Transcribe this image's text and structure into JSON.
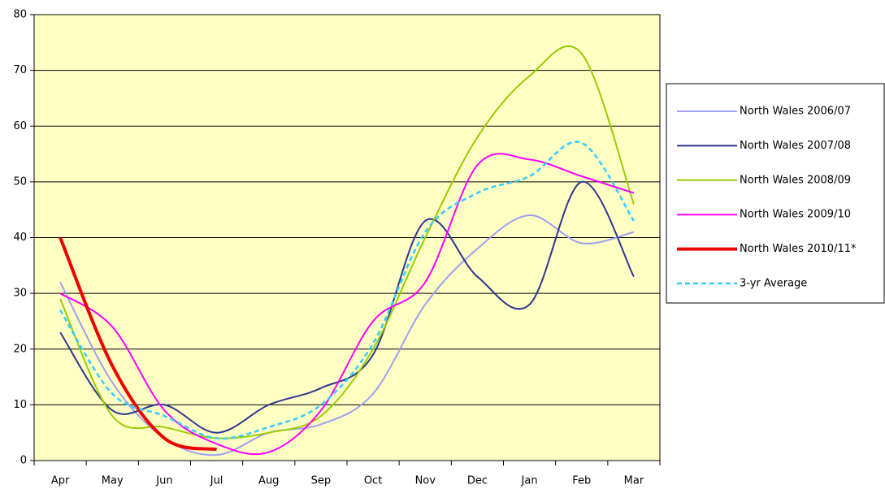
{
  "chart_data": {
    "type": "line",
    "categories": [
      "Apr",
      "May",
      "Jun",
      "Jul",
      "Aug",
      "Sep",
      "Oct",
      "Nov",
      "Dec",
      "Jan",
      "Feb",
      "Mar"
    ],
    "series": [
      {
        "name": "North Wales 2006/07",
        "color": "#9fa0f0",
        "width": 2,
        "dash": false,
        "values": [
          32,
          14,
          4,
          1,
          5,
          6.5,
          12,
          28,
          38,
          44,
          39,
          41
        ]
      },
      {
        "name": "North Wales 2007/08",
        "color": "#2e3690",
        "width": 2,
        "dash": false,
        "values": [
          23,
          9,
          10,
          5,
          10,
          13,
          19,
          43,
          33,
          28,
          50,
          33
        ]
      },
      {
        "name": "North Wales 2008/09",
        "color": "#99cc00",
        "width": 2,
        "dash": false,
        "values": [
          29,
          8,
          6,
          4,
          5,
          8,
          20,
          40,
          58,
          69,
          73,
          46
        ]
      },
      {
        "name": "North Wales 2009/10",
        "color": "#ff00ff",
        "width": 2,
        "dash": false,
        "values": [
          30,
          24,
          9,
          3,
          1.5,
          9,
          25,
          32,
          53,
          54,
          51,
          48
        ]
      },
      {
        "name": "North Wales 2010/11*",
        "color": "#ee0000",
        "width": 4,
        "dash": false,
        "values": [
          40,
          17,
          4,
          2,
          null,
          null,
          null,
          null,
          null,
          null,
          null,
          null
        ]
      },
      {
        "name": "3-yr Average",
        "color": "#33ccff",
        "width": 2.5,
        "dash": true,
        "values": [
          27,
          12,
          8,
          4,
          6,
          10,
          21,
          41,
          48,
          51,
          57,
          43
        ]
      }
    ],
    "ylim": [
      0,
      80
    ],
    "yticks": [
      0,
      10,
      20,
      30,
      40,
      50,
      60,
      70,
      80
    ],
    "grid": true,
    "legend": "right"
  }
}
